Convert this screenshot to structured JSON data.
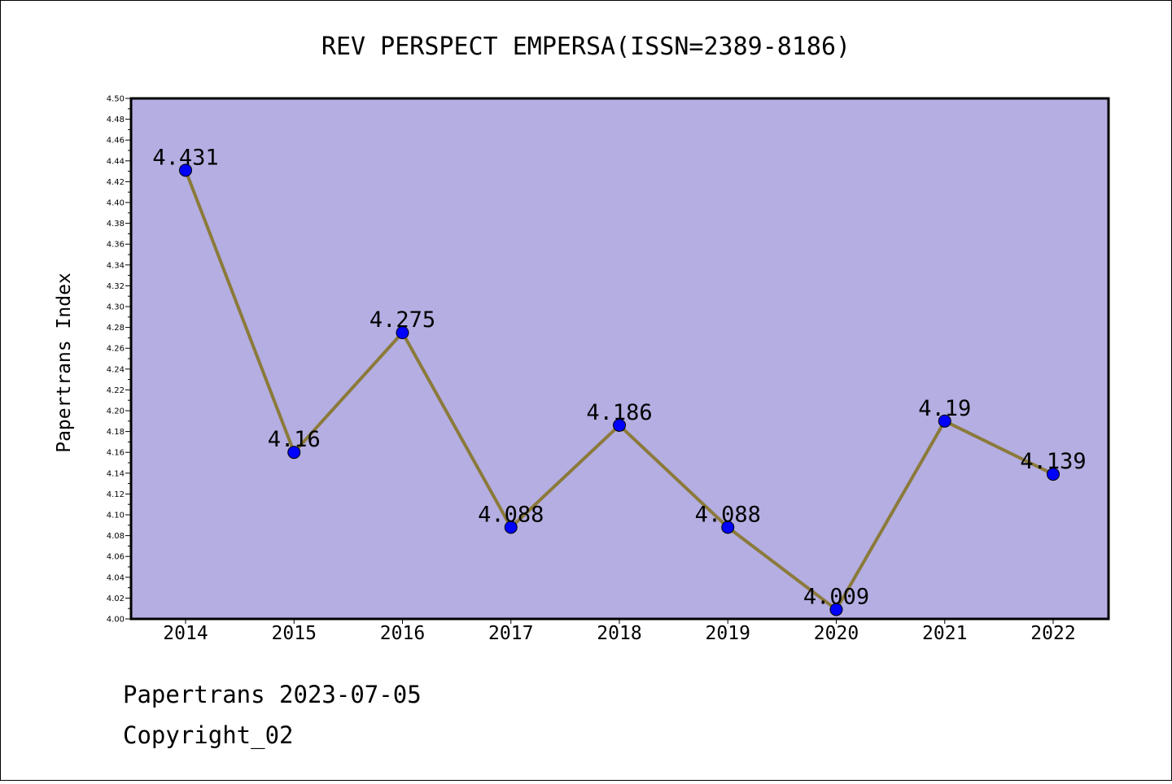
{
  "chart_data": {
    "type": "line",
    "title": "REV PERSPECT EMPERSA(ISSN=2389-8186)",
    "xlabel": "",
    "ylabel": "Papertrans Index",
    "categories": [
      "2014",
      "2015",
      "2016",
      "2017",
      "2018",
      "2019",
      "2020",
      "2021",
      "2022"
    ],
    "series": [
      {
        "values": [
          4.431,
          4.16,
          4.275,
          4.088,
          4.186,
          4.088,
          4.009,
          4.19,
          4.139
        ],
        "labels": [
          "4.431",
          "4.16",
          "4.275",
          "4.088",
          "4.186",
          "4.088",
          "4.009",
          "4.19",
          "4.139"
        ]
      }
    ],
    "ylim": [
      4.0,
      4.5
    ],
    "yticks": [
      "4.00",
      "4.02",
      "4.04",
      "4.06",
      "4.08",
      "4.10",
      "4.12",
      "4.14",
      "4.16",
      "4.18",
      "4.20",
      "4.22",
      "4.24",
      "4.26",
      "4.28",
      "4.30",
      "4.32",
      "4.34",
      "4.36",
      "4.38",
      "4.40",
      "4.42",
      "4.44",
      "4.46",
      "4.48",
      "4.50"
    ],
    "grid": false,
    "colors": {
      "plot_background": "#b4aee2",
      "line": "#8b7a3a",
      "marker": "#0000ff"
    }
  },
  "footer": {
    "line1": "Papertrans 2023-07-05",
    "line2": "Copyright_02"
  }
}
